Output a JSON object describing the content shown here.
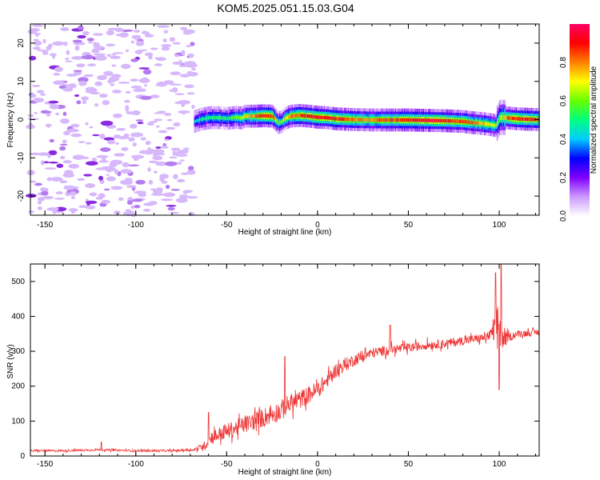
{
  "title": "KOM5.2025.051.15.03.G04",
  "chart_data": [
    {
      "type": "heatmap",
      "xlabel": "Height of straight line (km)",
      "ylabel": "Frequency (Hz)",
      "xlim": [
        -158,
        122
      ],
      "ylim": [
        -25,
        25
      ],
      "xticks": [
        -150,
        -100,
        -50,
        0,
        50,
        100
      ],
      "yticks": [
        -20,
        -10,
        0,
        10,
        20
      ],
      "colorbar": {
        "label": "Normalized spectral amplitude",
        "range": [
          0,
          1
        ],
        "ticks": [
          0.0,
          0.2,
          0.4,
          0.6,
          0.8
        ],
        "colors": [
          "#ffffff",
          "#cc99ff",
          "#8000ff",
          "#0000ff",
          "#00ccff",
          "#00ff80",
          "#66ff00",
          "#ffff00",
          "#ff8000",
          "#ff0000",
          "#ff0066"
        ]
      },
      "noise_region_x": [
        -158,
        -68
      ],
      "ridge": {
        "x": [
          -68,
          -65,
          -60,
          -55,
          -50,
          -45,
          -42,
          -40,
          -35,
          -30,
          -25,
          -22,
          -20,
          -18,
          -15,
          -10,
          -5,
          0,
          5,
          10,
          15,
          20,
          30,
          40,
          50,
          60,
          70,
          80,
          85,
          90,
          95,
          98,
          100,
          102,
          105,
          110,
          115,
          122
        ],
        "y": [
          -0.5,
          0,
          0.5,
          0.5,
          0.3,
          0.6,
          0.4,
          0.9,
          0.9,
          1.0,
          0.9,
          -0.8,
          -0.6,
          0.3,
          0.9,
          1.1,
          0.9,
          0.6,
          0.5,
          0.2,
          0.1,
          0.0,
          -0.1,
          -0.1,
          -0.1,
          -0.2,
          -0.3,
          -0.5,
          -0.8,
          -1.0,
          -1.3,
          -1.6,
          0.5,
          0.6,
          0.4,
          0.2,
          0.1,
          0.0
        ],
        "amplitude": [
          0.4,
          0.5,
          0.5,
          0.55,
          0.5,
          0.6,
          0.65,
          0.7,
          0.8,
          0.9,
          0.85,
          0.6,
          0.6,
          0.7,
          0.8,
          0.85,
          0.9,
          0.9,
          0.9,
          0.9,
          0.85,
          0.8,
          0.8,
          0.85,
          0.9,
          0.95,
          0.9,
          0.85,
          0.8,
          0.75,
          0.7,
          0.65,
          0.6,
          0.7,
          0.85,
          0.9,
          0.9,
          0.85
        ]
      }
    },
    {
      "type": "line",
      "xlabel": "Height of straight line (km)",
      "ylabel": "SNR (v/v)",
      "xlim": [
        -158,
        122
      ],
      "ylim": [
        0,
        550
      ],
      "xticks": [
        -150,
        -100,
        -50,
        0,
        50,
        100
      ],
      "yticks": [
        0,
        100,
        200,
        300,
        400,
        500
      ],
      "color": "#ee3333",
      "series": [
        {
          "x": [
            -158,
            -140,
            -120,
            -100,
            -80,
            -68,
            -62,
            -58,
            -50,
            -40,
            -30,
            -25,
            -20,
            -18,
            -15,
            -10,
            -5,
            0,
            5,
            10,
            15,
            20,
            25,
            30,
            40,
            50,
            60,
            70,
            80,
            90,
            95,
            98,
            100,
            102,
            105,
            110,
            122
          ],
          "values": [
            15,
            15,
            18,
            15,
            15,
            18,
            30,
            55,
            70,
            90,
            110,
            120,
            130,
            140,
            150,
            160,
            175,
            190,
            215,
            245,
            260,
            275,
            285,
            295,
            305,
            310,
            318,
            322,
            330,
            338,
            345,
            370,
            380,
            330,
            340,
            350,
            355
          ],
          "noise": [
            6,
            6,
            6,
            6,
            6,
            8,
            25,
            40,
            45,
            50,
            55,
            55,
            60,
            60,
            55,
            55,
            50,
            50,
            45,
            40,
            40,
            35,
            35,
            30,
            28,
            26,
            26,
            25,
            25,
            25,
            30,
            120,
            140,
            60,
            25,
            20,
            20
          ],
          "spikes": [
            {
              "x": -119,
              "value": 40
            },
            {
              "x": -60,
              "value": 125
            },
            {
              "x": -18,
              "value": 285
            },
            {
              "x": 40,
              "value": 375
            },
            {
              "x": 98,
              "value": 525
            },
            {
              "x": 100,
              "value": 190
            },
            {
              "x": 101,
              "value": 555
            }
          ]
        }
      ]
    }
  ]
}
